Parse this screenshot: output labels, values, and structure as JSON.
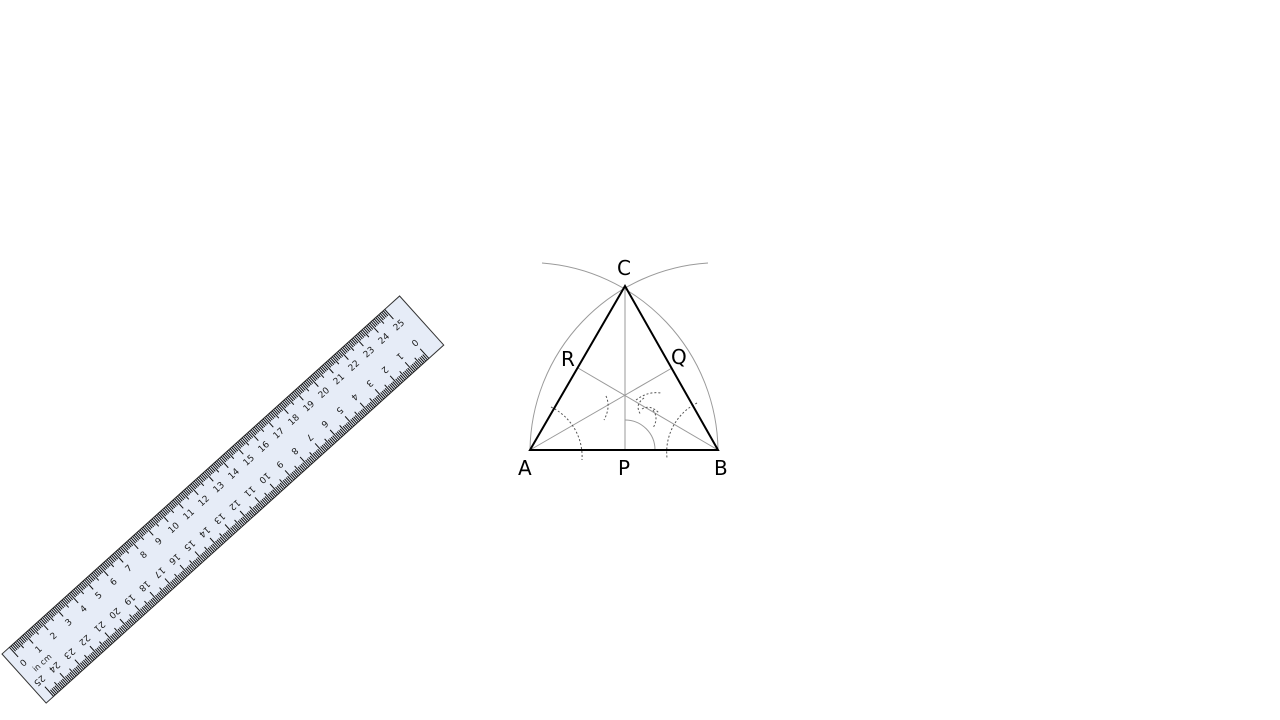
{
  "ruler": {
    "unit_label": "in cm",
    "top_scale": [
      "0",
      "1",
      "2",
      "3",
      "4",
      "5",
      "6",
      "7",
      "8",
      "9",
      "10",
      "11",
      "12",
      "13",
      "14",
      "15",
      "16",
      "17",
      "18",
      "19",
      "20",
      "21",
      "22",
      "23",
      "24",
      "25"
    ],
    "bottom_scale": [
      "25",
      "24",
      "23",
      "22",
      "21",
      "20",
      "19",
      "18",
      "17",
      "16",
      "15",
      "14",
      "13",
      "12",
      "11",
      "10",
      "9",
      "8",
      "7",
      "6",
      "5",
      "4",
      "3",
      "2",
      "1",
      "0"
    ],
    "colors": {
      "body": "#e6ecf7",
      "edge": "#333333",
      "ticks": "#111111"
    }
  },
  "construction": {
    "points": {
      "A": {
        "label": "A"
      },
      "B": {
        "label": "B"
      },
      "C": {
        "label": "C"
      },
      "P": {
        "label": "P"
      },
      "Q": {
        "label": "Q"
      },
      "R": {
        "label": "R"
      }
    },
    "colors": {
      "triangle": "#000000",
      "construction": "#9a9a9a",
      "arcs": "#555555"
    }
  }
}
